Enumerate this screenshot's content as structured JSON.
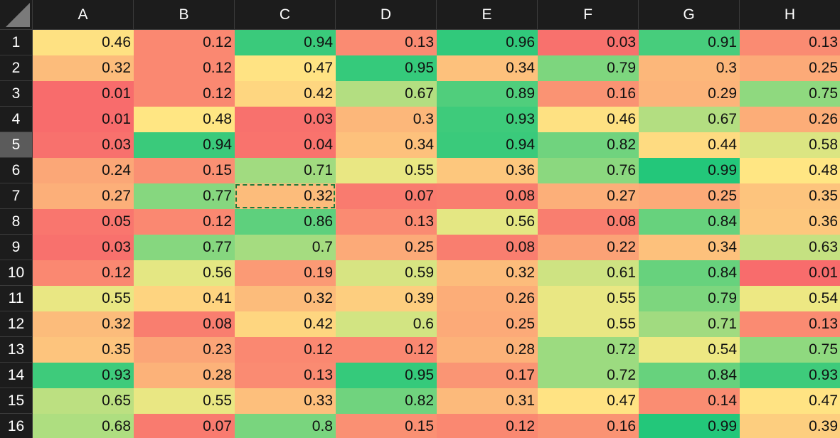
{
  "sheet": {
    "columns": [
      "A",
      "B",
      "C",
      "D",
      "E",
      "F",
      "G",
      "H"
    ],
    "rows": [
      "1",
      "2",
      "3",
      "4",
      "5",
      "6",
      "7",
      "8",
      "9",
      "10",
      "11",
      "12",
      "13",
      "14",
      "15",
      "16"
    ],
    "active_row": "5",
    "selected_cell": {
      "row": 7,
      "col": "C"
    },
    "values": [
      [
        "0.46",
        "0.12",
        "0.94",
        "0.13",
        "0.96",
        "0.03",
        "0.91",
        "0.13"
      ],
      [
        "0.32",
        "0.12",
        "0.47",
        "0.95",
        "0.34",
        "0.79",
        "0.3",
        "0.25"
      ],
      [
        "0.01",
        "0.12",
        "0.42",
        "0.67",
        "0.89",
        "0.16",
        "0.29",
        "0.75"
      ],
      [
        "0.01",
        "0.48",
        "0.03",
        "0.3",
        "0.93",
        "0.46",
        "0.67",
        "0.26"
      ],
      [
        "0.03",
        "0.94",
        "0.04",
        "0.34",
        "0.94",
        "0.82",
        "0.44",
        "0.58"
      ],
      [
        "0.24",
        "0.15",
        "0.71",
        "0.55",
        "0.36",
        "0.76",
        "0.99",
        "0.48"
      ],
      [
        "0.27",
        "0.77",
        "0.32",
        "0.07",
        "0.08",
        "0.27",
        "0.25",
        "0.35"
      ],
      [
        "0.05",
        "0.12",
        "0.86",
        "0.13",
        "0.56",
        "0.08",
        "0.84",
        "0.36"
      ],
      [
        "0.03",
        "0.77",
        "0.7",
        "0.25",
        "0.08",
        "0.22",
        "0.34",
        "0.63"
      ],
      [
        "0.12",
        "0.56",
        "0.19",
        "0.59",
        "0.32",
        "0.61",
        "0.84",
        "0.01"
      ],
      [
        "0.55",
        "0.41",
        "0.32",
        "0.39",
        "0.26",
        "0.55",
        "0.79",
        "0.54"
      ],
      [
        "0.32",
        "0.08",
        "0.42",
        "0.6",
        "0.25",
        "0.55",
        "0.71",
        "0.13"
      ],
      [
        "0.35",
        "0.23",
        "0.12",
        "0.12",
        "0.28",
        "0.72",
        "0.54",
        "0.75"
      ],
      [
        "0.93",
        "0.28",
        "0.13",
        "0.95",
        "0.17",
        "0.72",
        "0.84",
        "0.93"
      ],
      [
        "0.65",
        "0.55",
        "0.33",
        "0.82",
        "0.31",
        "0.47",
        "0.14",
        "0.47"
      ],
      [
        "0.68",
        "0.07",
        "0.8",
        "0.15",
        "0.12",
        "0.16",
        "0.99",
        "0.39"
      ]
    ],
    "colors": {
      "low": "#f8696b",
      "mid": "#ffeb84",
      "high": "#1fc67a",
      "header_bg": "#1c1c1c",
      "header_text": "#ffffff",
      "active_header_bg": "#5b5b5b",
      "selection_border": "#1f7a3c"
    }
  }
}
